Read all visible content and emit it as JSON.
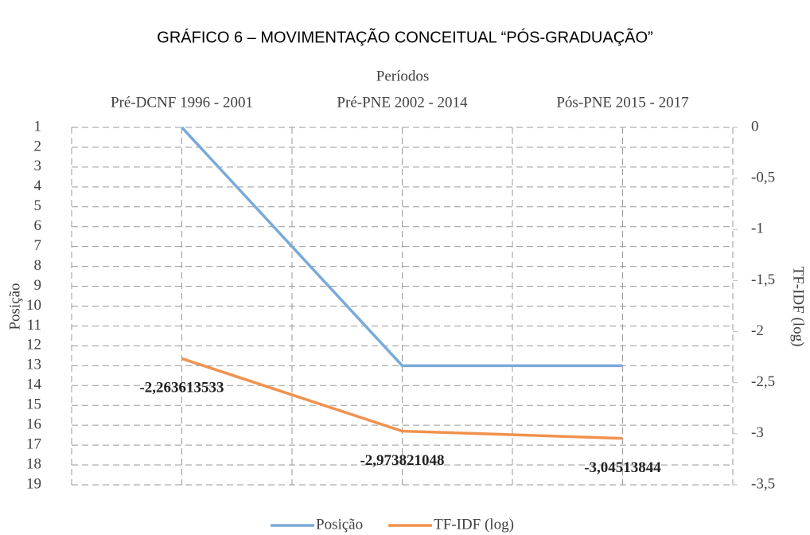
{
  "chart_data": {
    "type": "line",
    "title": "GRÁFICO 6 – MOVIMENTAÇÃO CONCEITUAL “PÓS-GRADUAÇÃO”",
    "x_label": "Períodos",
    "y_label": "Posição",
    "y2_label": "TF-IDF (log)",
    "categories": [
      "Pré-DCNF 1996 - 2001",
      "Pré-PNE 2002 - 2014",
      "Pós-PNE 2015 - 2017"
    ],
    "ylim": [
      1,
      19
    ],
    "y_inverted": true,
    "yticks": [
      1,
      2,
      3,
      4,
      5,
      6,
      7,
      8,
      9,
      10,
      11,
      12,
      13,
      14,
      15,
      16,
      17,
      18,
      19
    ],
    "y2lim": [
      -3.5,
      0
    ],
    "y2ticks": [
      0,
      {
        "value": -0.5,
        "label": "-0,5"
      },
      -1,
      {
        "value": -1.5,
        "label": "-1,5"
      },
      -2,
      {
        "value": -2.5,
        "label": "-2,5"
      },
      -3,
      {
        "value": -3.5,
        "label": "-3,5"
      }
    ],
    "grid": true,
    "legend": "bottom",
    "series": [
      {
        "name": "Posição",
        "color": "#7aaad8",
        "values": [
          1,
          13,
          13
        ]
      },
      {
        "name": "TF-IDF (log)",
        "color": "#f0924e",
        "axis": "y2",
        "values": [
          -2.263613533,
          -2.973821048,
          -3.04513844
        ],
        "value_labels": [
          "-2,263613533",
          "-2,973821048",
          "-3,04513844"
        ]
      }
    ]
  }
}
